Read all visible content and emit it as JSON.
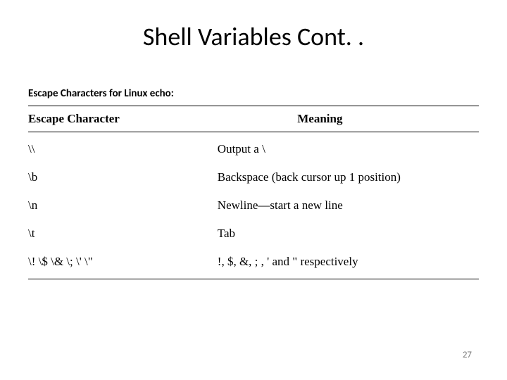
{
  "slide": {
    "title": "Shell Variables Cont. .",
    "subtitle": "Escape Characters for Linux echo:",
    "page_number": "27"
  },
  "table": {
    "type": "table",
    "header": {
      "col1": "Escape Character",
      "col2": "Meaning"
    },
    "rows": [
      {
        "col1": "\\\\",
        "col2": "Output a \\"
      },
      {
        "col1": "\\b",
        "col2": "Backspace (back cursor up 1 position)"
      },
      {
        "col1": "\\n",
        "col2": "Newline—start a new line"
      },
      {
        "col1": "\\t",
        "col2": "Tab"
      },
      {
        "col1": "\\!   \\$   \\&   \\;   \\'   \\\"",
        "col2": "!,  $,  &,  ; ,  ' and \" respectively"
      }
    ],
    "colors": {
      "border": "#000000",
      "text": "#000000",
      "background": "#ffffff",
      "page_number": "#7a7a7a"
    },
    "typography": {
      "title_fontsize": 36,
      "title_weight": 400,
      "subtitle_fontsize": 15,
      "subtitle_weight": "bold",
      "header_fontsize": 17,
      "header_weight": "bold",
      "body_fontsize": 17,
      "body_font": "Georgia, serif",
      "page_number_fontsize": 13
    },
    "column_widths": [
      "42%",
      "58%"
    ],
    "border_width": 1.5
  }
}
